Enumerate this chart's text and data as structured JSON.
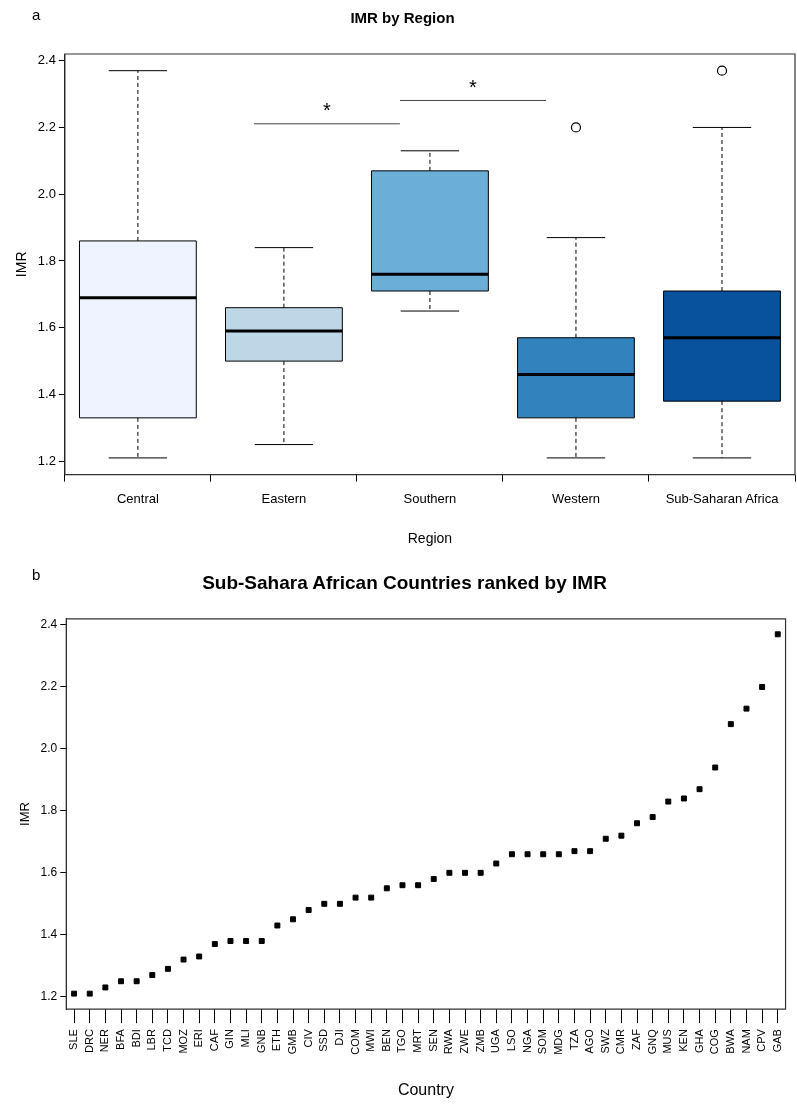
{
  "chart_data": [
    {
      "type": "box",
      "title": "IMR by Region",
      "xlabel": "Region",
      "ylabel": "IMR",
      "categories": [
        "Central",
        "Eastern",
        "Southern",
        "Western",
        "Sub-Saharan Africa"
      ],
      "colors": [
        "#eff3ff",
        "#bdd7e7",
        "#6baed6",
        "#3182bd",
        "#08519c"
      ],
      "boxes": [
        {
          "low": 1.21,
          "q1": 1.33,
          "median": 1.69,
          "q3": 1.86,
          "high": 2.37
        },
        {
          "low": 1.25,
          "q1": 1.5,
          "median": 1.59,
          "q3": 1.66,
          "high": 1.84
        },
        {
          "low": 1.65,
          "q1": 1.71,
          "median": 1.76,
          "q3": 2.07,
          "high": 2.13
        },
        {
          "low": 1.21,
          "q1": 1.33,
          "median": 1.46,
          "q3": 1.57,
          "high": 1.87,
          "outliers": [
            2.2
          ]
        },
        {
          "low": 1.21,
          "q1": 1.38,
          "median": 1.57,
          "q3": 1.71,
          "high": 2.2,
          "outliers": [
            2.37
          ]
        }
      ],
      "ylim": [
        1.16,
        2.42
      ],
      "yticks": [
        1.2,
        1.4,
        1.6,
        1.8,
        {
          "value": 2,
          "label": "2.0"
        },
        2.2,
        2.4
      ],
      "grid": false,
      "legend": false,
      "annotations": [
        "a",
        "*",
        "*"
      ]
    },
    {
      "type": "scatter",
      "title": "Sub-Sahara African Countries ranked by IMR",
      "xlabel": "Country",
      "ylabel": "IMR",
      "categories": [
        "SLE",
        "DRC",
        "NER",
        "BFA",
        "BDI",
        "LBR",
        "TCD",
        "MOZ",
        "ERI",
        "CAF",
        "GIN",
        "MLI",
        "GNB",
        "ETH",
        "GMB",
        "CIV",
        "SSD",
        "DJI",
        "COM",
        "MWI",
        "BEN",
        "TGO",
        "MRT",
        "SEN",
        "RWA",
        "ZWE",
        "ZMB",
        "UGA",
        "LSO",
        "NGA",
        "SOM",
        "MDG",
        "TZA",
        "AGO",
        "SWZ",
        "CMR",
        "ZAF",
        "GNQ",
        "MUS",
        "KEN",
        "GHA",
        "COG",
        "BWA",
        "NAM",
        "CPV",
        "GAB"
      ],
      "values": [
        1.21,
        1.21,
        1.23,
        1.25,
        1.25,
        1.27,
        1.29,
        1.32,
        1.33,
        1.37,
        1.38,
        1.38,
        1.38,
        1.43,
        1.45,
        1.48,
        1.5,
        1.5,
        1.52,
        1.52,
        1.55,
        1.56,
        1.56,
        1.58,
        1.6,
        1.6,
        1.6,
        1.63,
        1.66,
        1.66,
        1.66,
        1.66,
        1.67,
        1.67,
        1.71,
        1.72,
        1.76,
        1.78,
        1.83,
        1.84,
        1.87,
        1.94,
        2.08,
        2.13,
        2.2,
        2.37
      ],
      "color": "#000000",
      "marker": "square",
      "ylim": [
        1.16,
        2.42
      ],
      "yticks": [
        1.2,
        1.4,
        1.6,
        1.8,
        {
          "value": 2,
          "label": "2.0"
        },
        2.2,
        2.4
      ],
      "grid": false,
      "legend": false,
      "annotations": [
        "b"
      ]
    }
  ]
}
